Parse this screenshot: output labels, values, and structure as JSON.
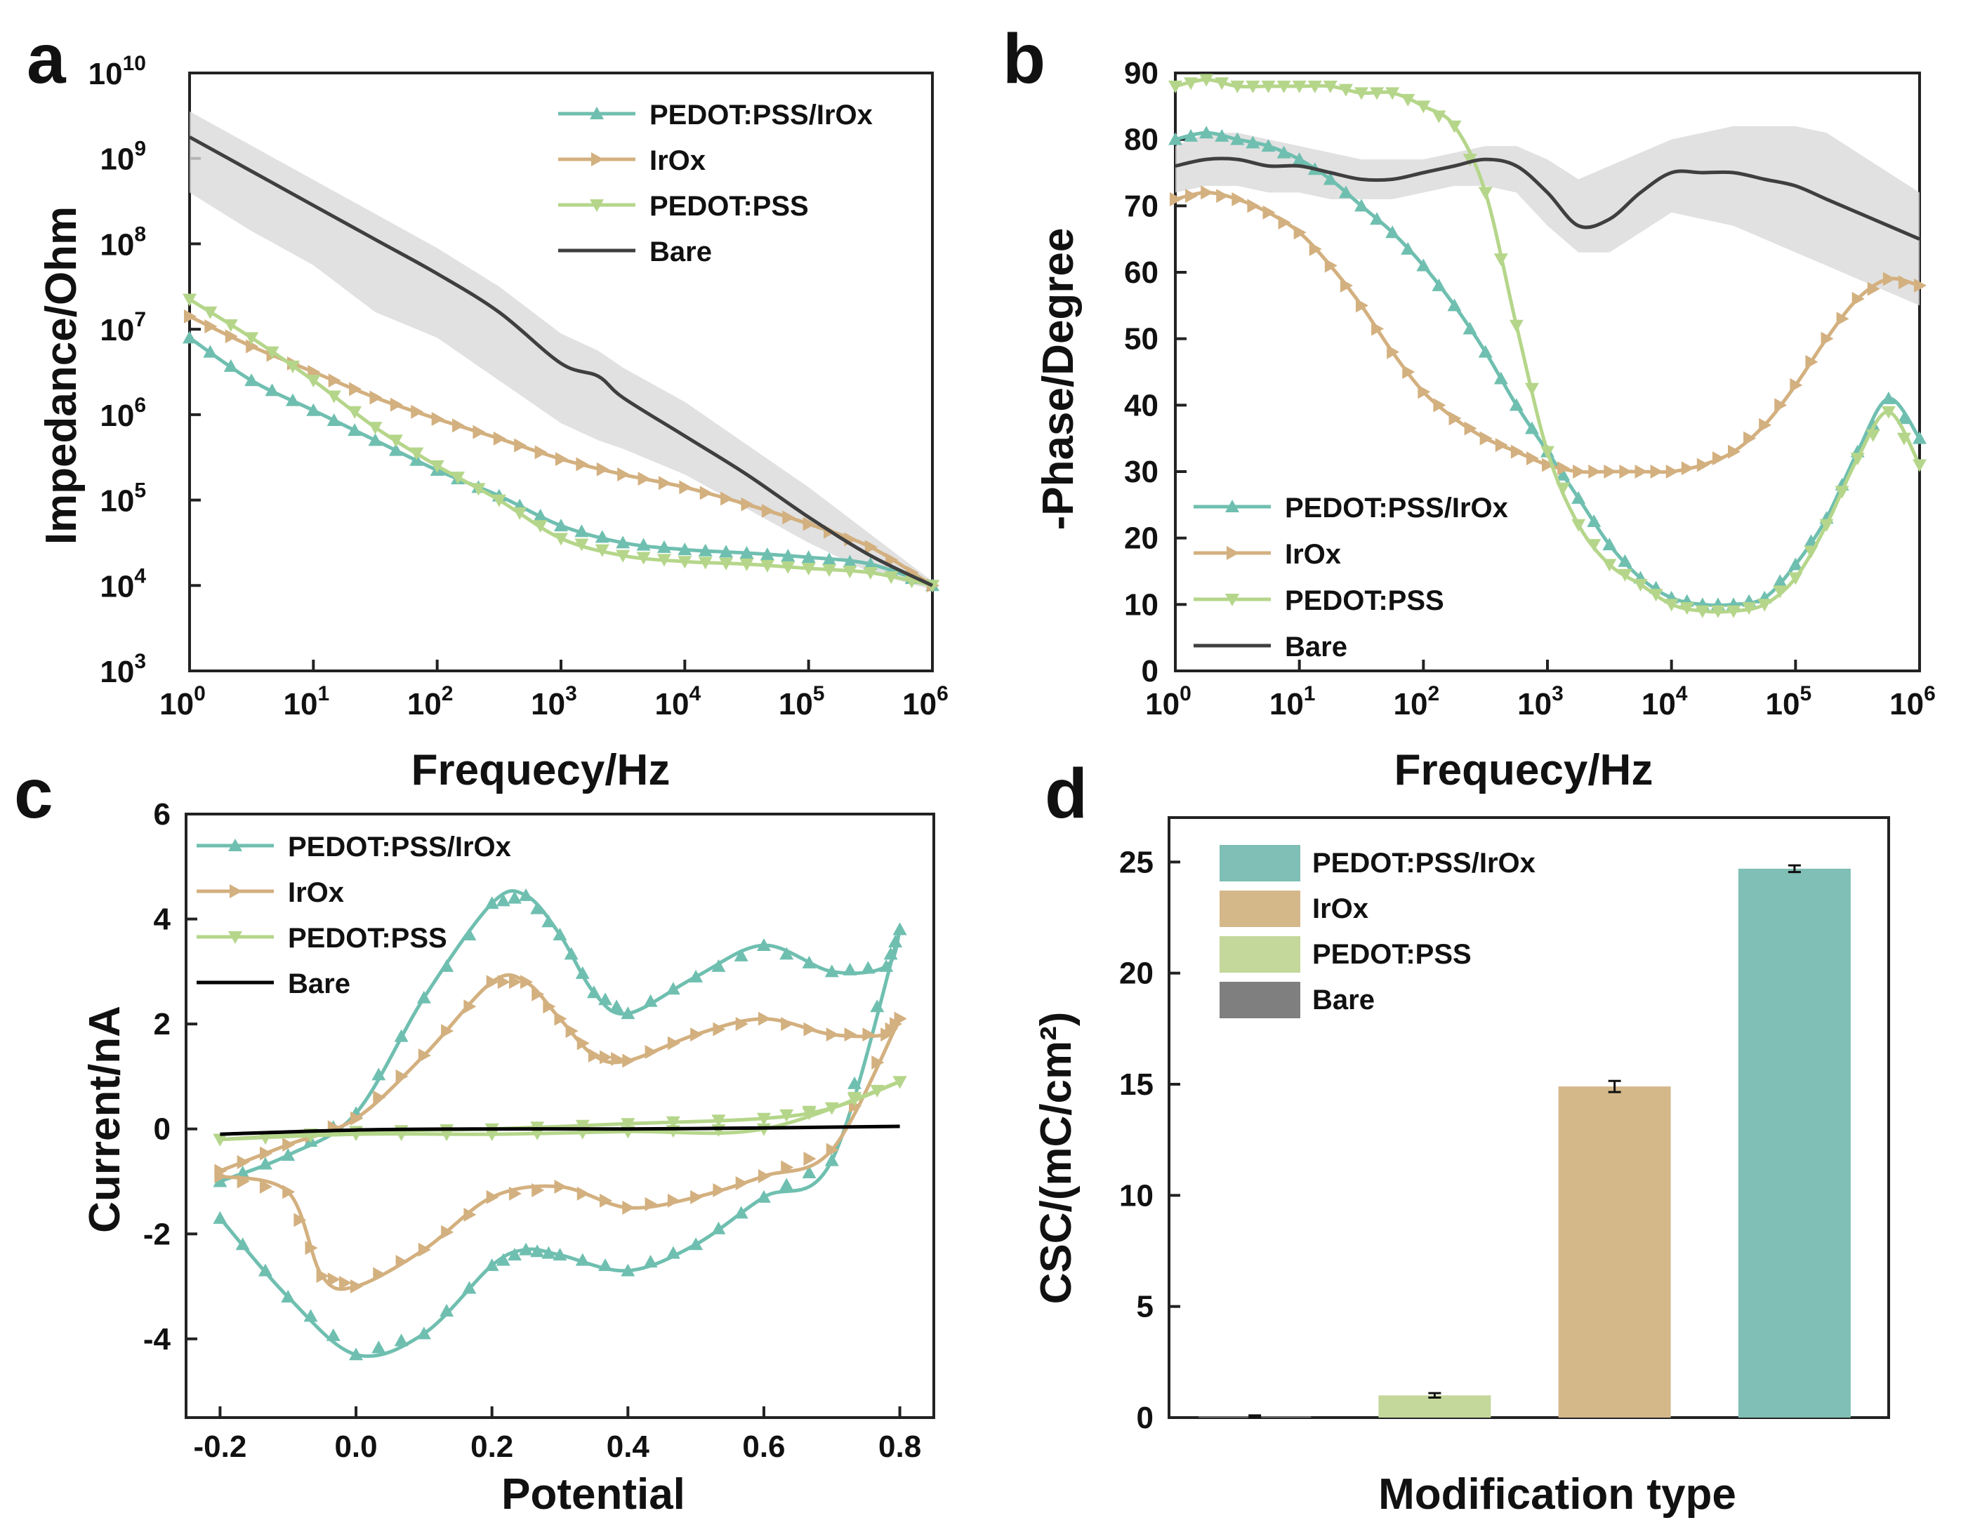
{
  "colors": {
    "PEDOT:PSS/IrOx": "#6fbfb0",
    "IrOx": "#d3b07f",
    "PEDOT:PSS": "#b5d68a",
    "Bare": "#3f3f3f",
    "bare_band": "#d9d9d9",
    "bar_pedot_irox": "#7fbfb5",
    "bar_irox": "#d4b88a",
    "bar_pedot": "#c3d89a",
    "bar_bare": "#7f7f7f"
  },
  "chart_data": [
    {
      "panel": "a",
      "type": "line",
      "title": "",
      "xlabel": "Frequecy/Hz",
      "ylabel": "Impedance/Ohm",
      "xscale": "log",
      "yscale": "log",
      "xlim": [
        1,
        1000000
      ],
      "ylim": [
        1000,
        10000000000
      ],
      "x_tick_exponents": [
        "0",
        "1",
        "2",
        "3",
        "4",
        "5",
        "6"
      ],
      "y_tick_exponents": [
        "3",
        "4",
        "5",
        "6",
        "7",
        "8",
        "9",
        "10"
      ],
      "tick_base": "10",
      "legend_position": "top-right",
      "legend": [
        "PEDOT:PSS/IrOx",
        "IrOx",
        "PEDOT:PSS",
        "Bare"
      ],
      "series": [
        {
          "name": "PEDOT:PSS/IrOx",
          "marker": "triangle-up",
          "log10_x": [
            0,
            0.5,
            1,
            1.5,
            2,
            2.5,
            3,
            3.5,
            4,
            4.5,
            5,
            5.5,
            6
          ],
          "log10_y": [
            6.9,
            6.4,
            6.05,
            5.7,
            5.35,
            5.05,
            4.7,
            4.5,
            4.42,
            4.38,
            4.33,
            4.25,
            4.0
          ]
        },
        {
          "name": "IrOx",
          "marker": "triangle-right",
          "log10_x": [
            0,
            0.5,
            1,
            1.5,
            2,
            2.5,
            3,
            3.5,
            4,
            4.5,
            5,
            5.5,
            6
          ],
          "log10_y": [
            7.15,
            6.8,
            6.5,
            6.2,
            5.95,
            5.72,
            5.48,
            5.3,
            5.15,
            4.95,
            4.72,
            4.45,
            4.0
          ]
        },
        {
          "name": "PEDOT:PSS",
          "marker": "triangle-down",
          "log10_x": [
            0,
            0.5,
            1,
            1.5,
            2,
            2.5,
            3,
            3.5,
            4,
            4.5,
            5,
            5.5,
            6
          ],
          "log10_y": [
            7.35,
            6.9,
            6.4,
            5.85,
            5.4,
            5.0,
            4.55,
            4.35,
            4.28,
            4.25,
            4.2,
            4.15,
            4.0
          ]
        },
        {
          "name": "Bare",
          "marker": "none",
          "log10_x": [
            0,
            0.5,
            1,
            1.5,
            2,
            2.5,
            3,
            3.3,
            3.5,
            4,
            4.5,
            5,
            5.5,
            6
          ],
          "log10_y": [
            9.25,
            8.85,
            8.45,
            8.05,
            7.65,
            7.2,
            6.6,
            6.45,
            6.2,
            5.75,
            5.3,
            4.8,
            4.35,
            4.0
          ],
          "band_low": [
            8.6,
            8.15,
            7.75,
            7.2,
            6.9,
            6.4,
            5.9,
            5.7,
            5.6,
            5.3,
            4.9,
            4.5,
            4.15,
            3.95
          ],
          "band_high": [
            9.55,
            9.15,
            8.75,
            8.35,
            7.95,
            7.5,
            6.95,
            6.75,
            6.55,
            6.15,
            5.65,
            5.15,
            4.6,
            4.05
          ]
        }
      ]
    },
    {
      "panel": "b",
      "type": "line",
      "title": "",
      "xlabel": "Frequecy/Hz",
      "ylabel": "-Phase/Degree",
      "xscale": "log",
      "xlim": [
        1,
        1000000
      ],
      "ylim": [
        0,
        90
      ],
      "x_tick_exponents": [
        "0",
        "1",
        "2",
        "3",
        "4",
        "5",
        "6"
      ],
      "y_ticks": [
        "0",
        "10",
        "20",
        "30",
        "40",
        "50",
        "60",
        "70",
        "80",
        "90"
      ],
      "tick_base": "10",
      "legend_position": "bottom-left",
      "legend": [
        "PEDOT:PSS/IrOx",
        "IrOx",
        "PEDOT:PSS",
        "Bare"
      ],
      "series": [
        {
          "name": "PEDOT:PSS/IrOx",
          "marker": "triangle-up",
          "log10_x": [
            0,
            0.25,
            0.5,
            0.75,
            1,
            1.25,
            1.5,
            1.75,
            2,
            2.25,
            2.5,
            2.75,
            3,
            3.25,
            3.5,
            3.75,
            4,
            4.25,
            4.5,
            4.75,
            5,
            5.25,
            5.5,
            5.75,
            6
          ],
          "y": [
            80,
            81,
            80,
            79,
            77,
            74,
            70,
            66,
            61,
            55,
            48,
            40,
            33,
            26,
            19,
            14,
            11,
            10,
            10,
            11,
            16,
            23,
            33,
            41,
            35
          ]
        },
        {
          "name": "IrOx",
          "marker": "triangle-right",
          "log10_x": [
            0,
            0.25,
            0.5,
            0.75,
            1,
            1.25,
            1.5,
            1.75,
            2,
            2.25,
            2.5,
            2.75,
            3,
            3.25,
            3.5,
            3.75,
            4,
            4.25,
            4.5,
            4.75,
            5,
            5.25,
            5.5,
            5.75,
            6
          ],
          "y": [
            71,
            72,
            71,
            69,
            66,
            61,
            55,
            48,
            42,
            38,
            35,
            33,
            31,
            30,
            30,
            30,
            30,
            31,
            33,
            37,
            43,
            50,
            56,
            59,
            58
          ]
        },
        {
          "name": "PEDOT:PSS",
          "marker": "triangle-down",
          "log10_x": [
            0,
            0.25,
            0.5,
            0.75,
            1,
            1.25,
            1.5,
            1.75,
            2,
            2.25,
            2.5,
            2.75,
            3,
            3.25,
            3.5,
            3.75,
            4,
            4.25,
            4.5,
            4.75,
            5,
            5.25,
            5.5,
            5.75,
            6
          ],
          "y": [
            88,
            89,
            88,
            88,
            88,
            88,
            87,
            87,
            85,
            82,
            72,
            52,
            33,
            22,
            16,
            13,
            10,
            9,
            9,
            10,
            14,
            22,
            32,
            39,
            31
          ]
        },
        {
          "name": "Bare",
          "marker": "none",
          "log10_x": [
            0,
            0.25,
            0.5,
            0.75,
            1,
            1.25,
            1.5,
            1.75,
            2,
            2.25,
            2.5,
            2.75,
            3,
            3.25,
            3.5,
            3.75,
            4,
            4.25,
            4.5,
            4.75,
            5,
            5.25,
            5.5,
            5.75,
            6
          ],
          "y": [
            76,
            77,
            77,
            76,
            76,
            75,
            74,
            74,
            75,
            76,
            77,
            76,
            72,
            67,
            68,
            72,
            75,
            75,
            75,
            74,
            73,
            71,
            69,
            67,
            65
          ],
          "band_low": [
            72,
            73,
            73,
            72,
            72,
            71,
            71,
            71,
            72,
            73,
            73,
            72,
            67,
            63,
            63,
            66,
            69,
            68,
            67,
            65,
            63,
            61,
            59,
            57,
            55
          ],
          "band_high": [
            79,
            81,
            81,
            80,
            79,
            78,
            77,
            77,
            77,
            78,
            79,
            79,
            77,
            74,
            76,
            78,
            80,
            81,
            82,
            82,
            82,
            81,
            78,
            75,
            72
          ]
        }
      ]
    },
    {
      "panel": "c",
      "type": "line",
      "title": "",
      "xlabel": "Potential",
      "ylabel": "Current/nA",
      "xlim": [
        -0.25,
        0.85
      ],
      "ylim": [
        -5.5,
        6
      ],
      "x_ticks": [
        "-0.2",
        "0.0",
        "0.2",
        "0.4",
        "0.6",
        "0.8"
      ],
      "y_ticks": [
        "-4",
        "-2",
        "0",
        "2",
        "4",
        "6"
      ],
      "legend_position": "top-left",
      "legend": [
        "PEDOT:PSS/IrOx",
        "IrOx",
        "PEDOT:PSS",
        "Bare"
      ],
      "series": [
        {
          "name": "PEDOT:PSS/IrOx",
          "marker": "triangle-up",
          "anodic_x": [
            -0.2,
            -0.1,
            0.0,
            0.1,
            0.2,
            0.25,
            0.3,
            0.35,
            0.4,
            0.5,
            0.6,
            0.7,
            0.78,
            0.8
          ],
          "anodic_y": [
            -1.0,
            -0.5,
            0.3,
            2.5,
            4.3,
            4.45,
            3.7,
            2.6,
            2.2,
            2.9,
            3.5,
            3.0,
            3.1,
            3.8
          ],
          "cathodic_x": [
            0.8,
            0.7,
            0.6,
            0.5,
            0.4,
            0.3,
            0.25,
            0.2,
            0.1,
            0.0,
            -0.1,
            -0.2
          ],
          "cathodic_y": [
            3.8,
            -0.6,
            -1.3,
            -2.2,
            -2.7,
            -2.4,
            -2.3,
            -2.6,
            -3.9,
            -4.3,
            -3.2,
            -1.7
          ]
        },
        {
          "name": "IrOx",
          "marker": "triangle-right",
          "anodic_x": [
            -0.2,
            -0.1,
            0.0,
            0.1,
            0.2,
            0.25,
            0.3,
            0.35,
            0.4,
            0.5,
            0.6,
            0.7,
            0.78,
            0.8
          ],
          "anodic_y": [
            -0.8,
            -0.3,
            0.2,
            1.4,
            2.8,
            2.8,
            2.1,
            1.4,
            1.3,
            1.8,
            2.1,
            1.8,
            1.8,
            2.1
          ],
          "cathodic_x": [
            0.8,
            0.7,
            0.6,
            0.5,
            0.4,
            0.3,
            0.2,
            0.1,
            0.0,
            -0.05,
            -0.1,
            -0.2
          ],
          "cathodic_y": [
            2.1,
            -0.4,
            -0.9,
            -1.3,
            -1.5,
            -1.1,
            -1.3,
            -2.3,
            -3.0,
            -2.8,
            -1.2,
            -0.9
          ]
        },
        {
          "name": "PEDOT:PSS",
          "marker": "triangle-down",
          "anodic_x": [
            -0.2,
            0.0,
            0.2,
            0.4,
            0.6,
            0.7,
            0.8
          ],
          "anodic_y": [
            -0.2,
            -0.05,
            0.0,
            0.1,
            0.2,
            0.4,
            0.9
          ],
          "cathodic_x": [
            0.8,
            0.6,
            0.4,
            0.2,
            0.0,
            -0.2
          ],
          "cathodic_y": [
            0.9,
            0.0,
            -0.05,
            -0.1,
            -0.1,
            -0.2
          ]
        },
        {
          "name": "Bare",
          "marker": "none",
          "anodic_x": [
            -0.2,
            0.0,
            0.2,
            0.4,
            0.6,
            0.8
          ],
          "anodic_y": [
            -0.1,
            -0.02,
            0.0,
            0.0,
            0.02,
            0.05
          ],
          "cathodic_x": [],
          "cathodic_y": []
        }
      ]
    },
    {
      "panel": "d",
      "type": "bar",
      "title": "",
      "xlabel": "Modification type",
      "ylabel": "CSC/(mC/cm²)",
      "ylim": [
        0,
        27
      ],
      "y_ticks": [
        "0",
        "5",
        "10",
        "15",
        "20",
        "25"
      ],
      "legend_position": "top-left",
      "legend": [
        "PEDOT:PSS/IrOx",
        "IrOx",
        "PEDOT:PSS",
        "Bare"
      ],
      "categories": [
        "Bare",
        "PEDOT:PSS",
        "IrOx",
        "PEDOT:PSS/IrOx"
      ],
      "values": [
        0.05,
        1.0,
        14.9,
        24.7
      ],
      "errors": [
        0.05,
        0.1,
        0.25,
        0.15
      ]
    }
  ],
  "panel_labels": {
    "a": "a",
    "b": "b",
    "c": "c",
    "d": "d"
  },
  "axes": {
    "a": {
      "xlabel": "Frequecy/Hz",
      "ylabel": "Impedance/Ohm"
    },
    "b": {
      "xlabel": "Frequecy/Hz",
      "ylabel": "-Phase/Degree"
    },
    "c": {
      "xlabel": "Potential",
      "ylabel": "Current/nA"
    },
    "d": {
      "xlabel": "Modification type",
      "ylabel": "CSC/(mC/cm²)"
    }
  },
  "legend_labels": [
    "PEDOT:PSS/IrOx",
    "IrOx",
    "PEDOT:PSS",
    "Bare"
  ]
}
